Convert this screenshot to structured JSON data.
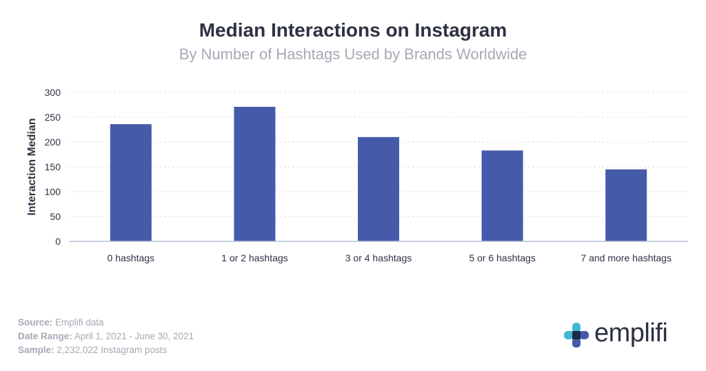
{
  "header": {
    "title": "Median Interactions on Instagram",
    "subtitle": "By Number of Hashtags Used by Brands Worldwide"
  },
  "chart_data": {
    "type": "bar",
    "categories": [
      "0 hashtags",
      "1 or 2 hashtags",
      "3 or 4 hashtags",
      "5 or 6 hashtags",
      "7 and more hashtags"
    ],
    "values": [
      236,
      271,
      210,
      183,
      145
    ],
    "title": "Median Interactions on Instagram",
    "subtitle": "By Number of Hashtags Used by Brands Worldwide",
    "xlabel": "",
    "ylabel": "Interaction Median",
    "ylim": [
      0,
      300
    ],
    "yticks": [
      0,
      50,
      100,
      150,
      200,
      250,
      300
    ],
    "grid": true,
    "bar_color": "#465aaa"
  },
  "footer": {
    "source_label": "Source:",
    "source_value": "Emplifi data",
    "date_label": "Date Range:",
    "date_value": "April 1, 2021 - June 30, 2021",
    "sample_label": "Sample:",
    "sample_value": "2,232,022 Instagram posts"
  },
  "logo": {
    "text": "emplifi",
    "icon": "emplifi-cross-logo-icon",
    "colors": [
      "#3fb8d6",
      "#465aaa",
      "#1a2b4a"
    ]
  }
}
